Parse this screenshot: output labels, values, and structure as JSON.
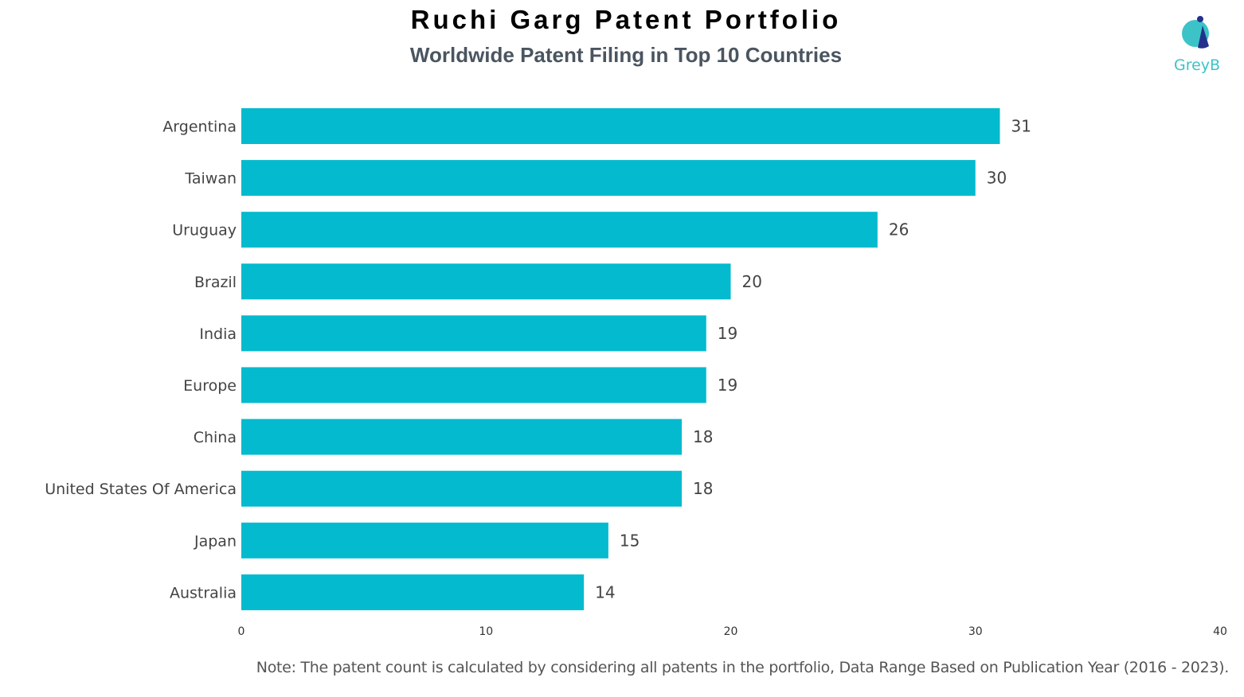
{
  "chart_data": {
    "type": "bar",
    "orientation": "horizontal",
    "title": "Ruchi Garg Patent Portfolio",
    "subtitle": "Worldwide Patent Filing in Top 10 Countries",
    "categories": [
      "Argentina",
      "Taiwan",
      "Uruguay",
      "Brazil",
      "India",
      "Europe",
      "China",
      "United States Of America",
      "Japan",
      "Australia"
    ],
    "values": [
      31,
      30,
      26,
      20,
      19,
      19,
      18,
      18,
      15,
      14
    ],
    "xlim": [
      0,
      40
    ],
    "xticks": [
      0,
      10,
      20,
      30,
      40
    ],
    "xlabel": "",
    "ylabel": "",
    "grid": false,
    "bar_color": "#04bace",
    "data_labels": true
  },
  "note": "Note: The patent count is calculated by considering all patents in the portfolio, Data Range Based on Publication Year (2016 - 2023).",
  "logo": {
    "text": "GreyB",
    "colors": [
      "#3cc3c8",
      "#23318c"
    ]
  }
}
